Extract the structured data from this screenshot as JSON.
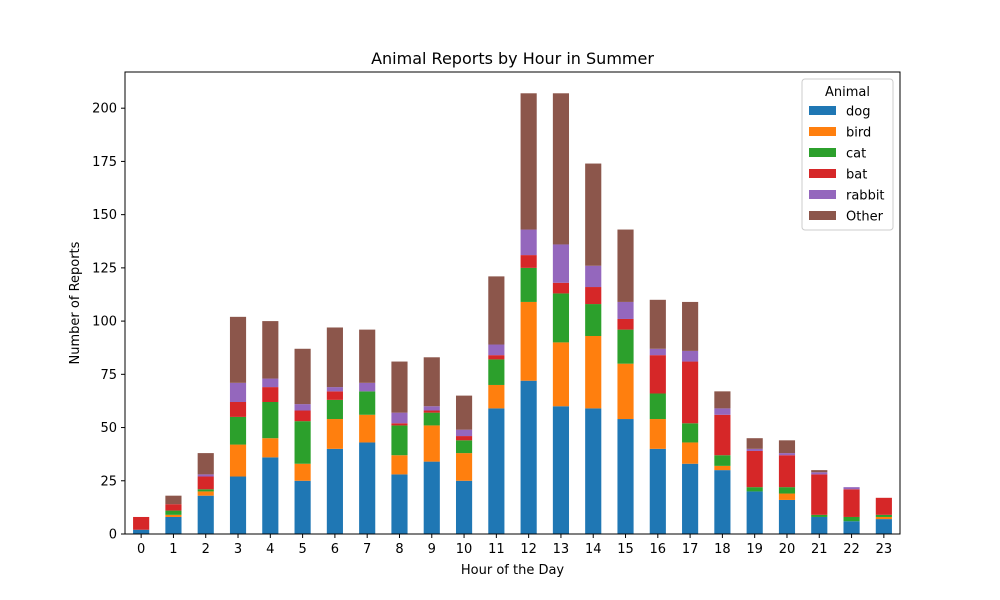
{
  "chart_data": {
    "type": "bar",
    "stacked": true,
    "title": "Animal Reports by Hour in Summer",
    "xlabel": "Hour of the Day",
    "ylabel": "Number of Reports",
    "categories": [
      "0",
      "1",
      "2",
      "3",
      "4",
      "5",
      "6",
      "7",
      "8",
      "9",
      "10",
      "11",
      "12",
      "13",
      "14",
      "15",
      "16",
      "17",
      "18",
      "19",
      "20",
      "21",
      "22",
      "23"
    ],
    "ylim": [
      0,
      217
    ],
    "yticks": [
      0,
      25,
      50,
      75,
      100,
      125,
      150,
      175,
      200
    ],
    "grid": false,
    "legend": {
      "title": "Animal",
      "position": "top-right"
    },
    "series": [
      {
        "name": "dog",
        "color": "#1f77b4",
        "values": [
          2,
          8,
          18,
          27,
          36,
          25,
          40,
          43,
          28,
          34,
          25,
          59,
          72,
          60,
          59,
          54,
          40,
          33,
          30,
          20,
          16,
          8,
          6,
          7
        ]
      },
      {
        "name": "bird",
        "color": "#ff7f0e",
        "values": [
          0,
          1,
          2,
          15,
          9,
          8,
          14,
          13,
          9,
          17,
          13,
          11,
          37,
          30,
          34,
          26,
          14,
          10,
          2,
          0,
          3,
          0,
          0,
          1
        ]
      },
      {
        "name": "cat",
        "color": "#2ca02c",
        "values": [
          0,
          2,
          1,
          13,
          17,
          20,
          9,
          11,
          14,
          6,
          6,
          12,
          16,
          23,
          15,
          16,
          12,
          9,
          5,
          2,
          3,
          1,
          2,
          1
        ]
      },
      {
        "name": "bat",
        "color": "#d62728",
        "values": [
          6,
          3,
          6,
          7,
          7,
          5,
          4,
          0,
          1,
          1,
          2,
          2,
          6,
          5,
          8,
          5,
          18,
          29,
          19,
          17,
          15,
          19,
          13,
          8
        ]
      },
      {
        "name": "rabbit",
        "color": "#9467bd",
        "values": [
          0,
          0,
          1,
          9,
          4,
          3,
          2,
          4,
          5,
          2,
          3,
          5,
          12,
          18,
          10,
          8,
          3,
          5,
          3,
          1,
          1,
          1,
          1,
          0
        ]
      },
      {
        "name": "Other",
        "color": "#8c564b",
        "values": [
          0,
          4,
          10,
          31,
          27,
          26,
          28,
          25,
          24,
          23,
          16,
          32,
          64,
          71,
          48,
          34,
          23,
          23,
          8,
          5,
          6,
          1,
          0,
          0
        ]
      }
    ]
  }
}
